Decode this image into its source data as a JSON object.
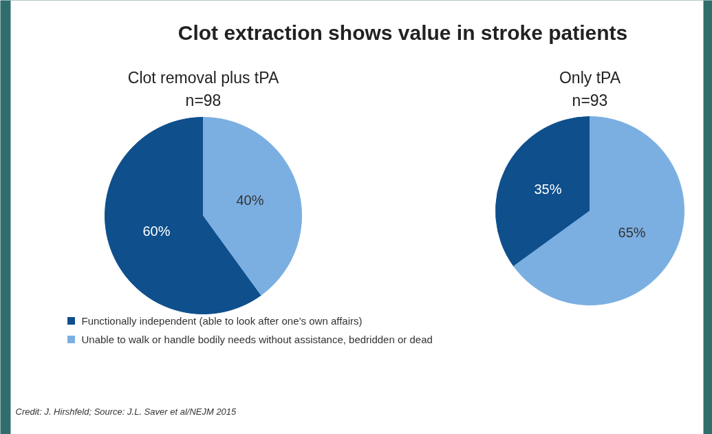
{
  "chart_data": [
    {
      "type": "pie",
      "title": "Clot removal plus tPA",
      "subtitle": "n=98",
      "categories": [
        "Functionally independent (able to look after one’s own affairs)",
        "Unable to walk or handle bodily needs without assistance, bedridden or dead"
      ],
      "values": [
        60,
        40
      ],
      "value_labels": [
        "60%",
        "40%"
      ],
      "colors": [
        "#0e4f8c",
        "#7bafe1"
      ],
      "legend": "bottom",
      "annotations": [
        "Clot extraction shows value in stroke patients",
        "Credit: J. Hirshfeld; Source: J.L. Saver et al/NEJM 2015"
      ]
    },
    {
      "type": "pie",
      "title": "Only tPA",
      "subtitle": "n=93",
      "categories": [
        null,
        null
      ],
      "values": [
        35,
        65
      ],
      "value_labels": [
        "35%",
        "65%"
      ],
      "colors": [
        "#0e4f8c",
        "#7bafe1"
      ]
    }
  ]
}
